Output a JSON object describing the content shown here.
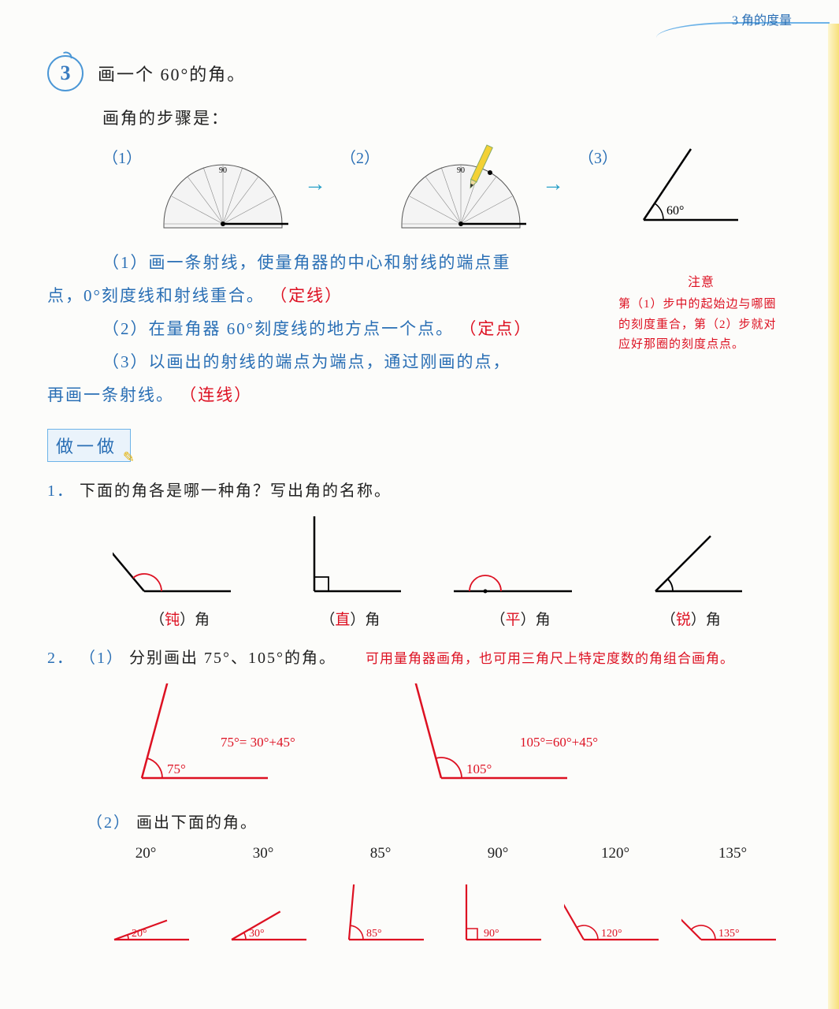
{
  "header": {
    "chapter": "3 角的度量"
  },
  "section_number": "3",
  "title": "画一个 60°的角。",
  "steps_intro": "画角的步骤是：",
  "step_labels": [
    "（1）",
    "（2）",
    "（3）"
  ],
  "result_angle_label": "60°",
  "protractor_mark": "90",
  "explain": {
    "p1_a": "（1）画一条射线，使量角器的中心和射线的端点重",
    "p1_b": "点，0°刻度线和射线重合。",
    "p1_red": "（定线）",
    "p2": "（2）在量角器 60°刻度线的地方点一个点。",
    "p2_red": "（定点）",
    "p3_a": "（3）以画出的射线的端点为端点，通过刚画的点，",
    "p3_b": "再画一条射线。",
    "p3_red": "（连线）"
  },
  "note": {
    "title": "注意",
    "body": "第（1）步中的起始边与哪圈的刻度重合，第（2）步就对应好那圈的刻度点点。"
  },
  "practice_header": "做一做",
  "q1": {
    "num": "1．",
    "text": "下面的角各是哪一种角？写出角的名称。",
    "items": [
      {
        "svg_angle": 130,
        "arc_color": "#d12",
        "answer": "钝",
        "suffix": "）角",
        "prefix": "（",
        "right_angle": false,
        "flat": false
      },
      {
        "svg_angle": 90,
        "arc_color": "#000",
        "answer": "直",
        "suffix": "）角",
        "prefix": "（",
        "right_angle": true,
        "flat": false
      },
      {
        "svg_angle": 180,
        "arc_color": "#d12",
        "answer": "平",
        "suffix": "）角",
        "prefix": "（",
        "right_angle": false,
        "flat": true
      },
      {
        "svg_angle": 45,
        "arc_color": "#000",
        "answer": "锐",
        "suffix": "）角",
        "prefix": "（",
        "right_angle": false,
        "flat": false
      }
    ]
  },
  "q2": {
    "num": "2．",
    "part1_label": "（1）",
    "part1_text": "分别画出 75°、105°的角。",
    "hint": "可用量角器画角，也可用三角尺上特定度数的角组合画角。",
    "angles": [
      {
        "deg": 75,
        "label": "75°",
        "eq": "75°= 30°+45°",
        "arc_color": "#d12"
      },
      {
        "deg": 105,
        "label": "105°",
        "eq": "105°=60°+45°",
        "arc_color": "#d12"
      }
    ],
    "part2_label": "（2）",
    "part2_text": "画出下面的角。",
    "list": [
      {
        "deg": 20,
        "label": "20°",
        "inner": "20°"
      },
      {
        "deg": 30,
        "label": "30°",
        "inner": "30°"
      },
      {
        "deg": 85,
        "label": "85°",
        "inner": "85°"
      },
      {
        "deg": 90,
        "label": "90°",
        "inner": "90°"
      },
      {
        "deg": 120,
        "label": "120°",
        "inner": "120°"
      },
      {
        "deg": 135,
        "label": "135°",
        "inner": "135°"
      }
    ]
  },
  "colors": {
    "blue": "#2a6fb5",
    "red": "#d12222",
    "arrow": "#2aa0c8",
    "protractor_stroke": "#555",
    "angle_line": "#d12222",
    "angle_line_black": "#111"
  }
}
